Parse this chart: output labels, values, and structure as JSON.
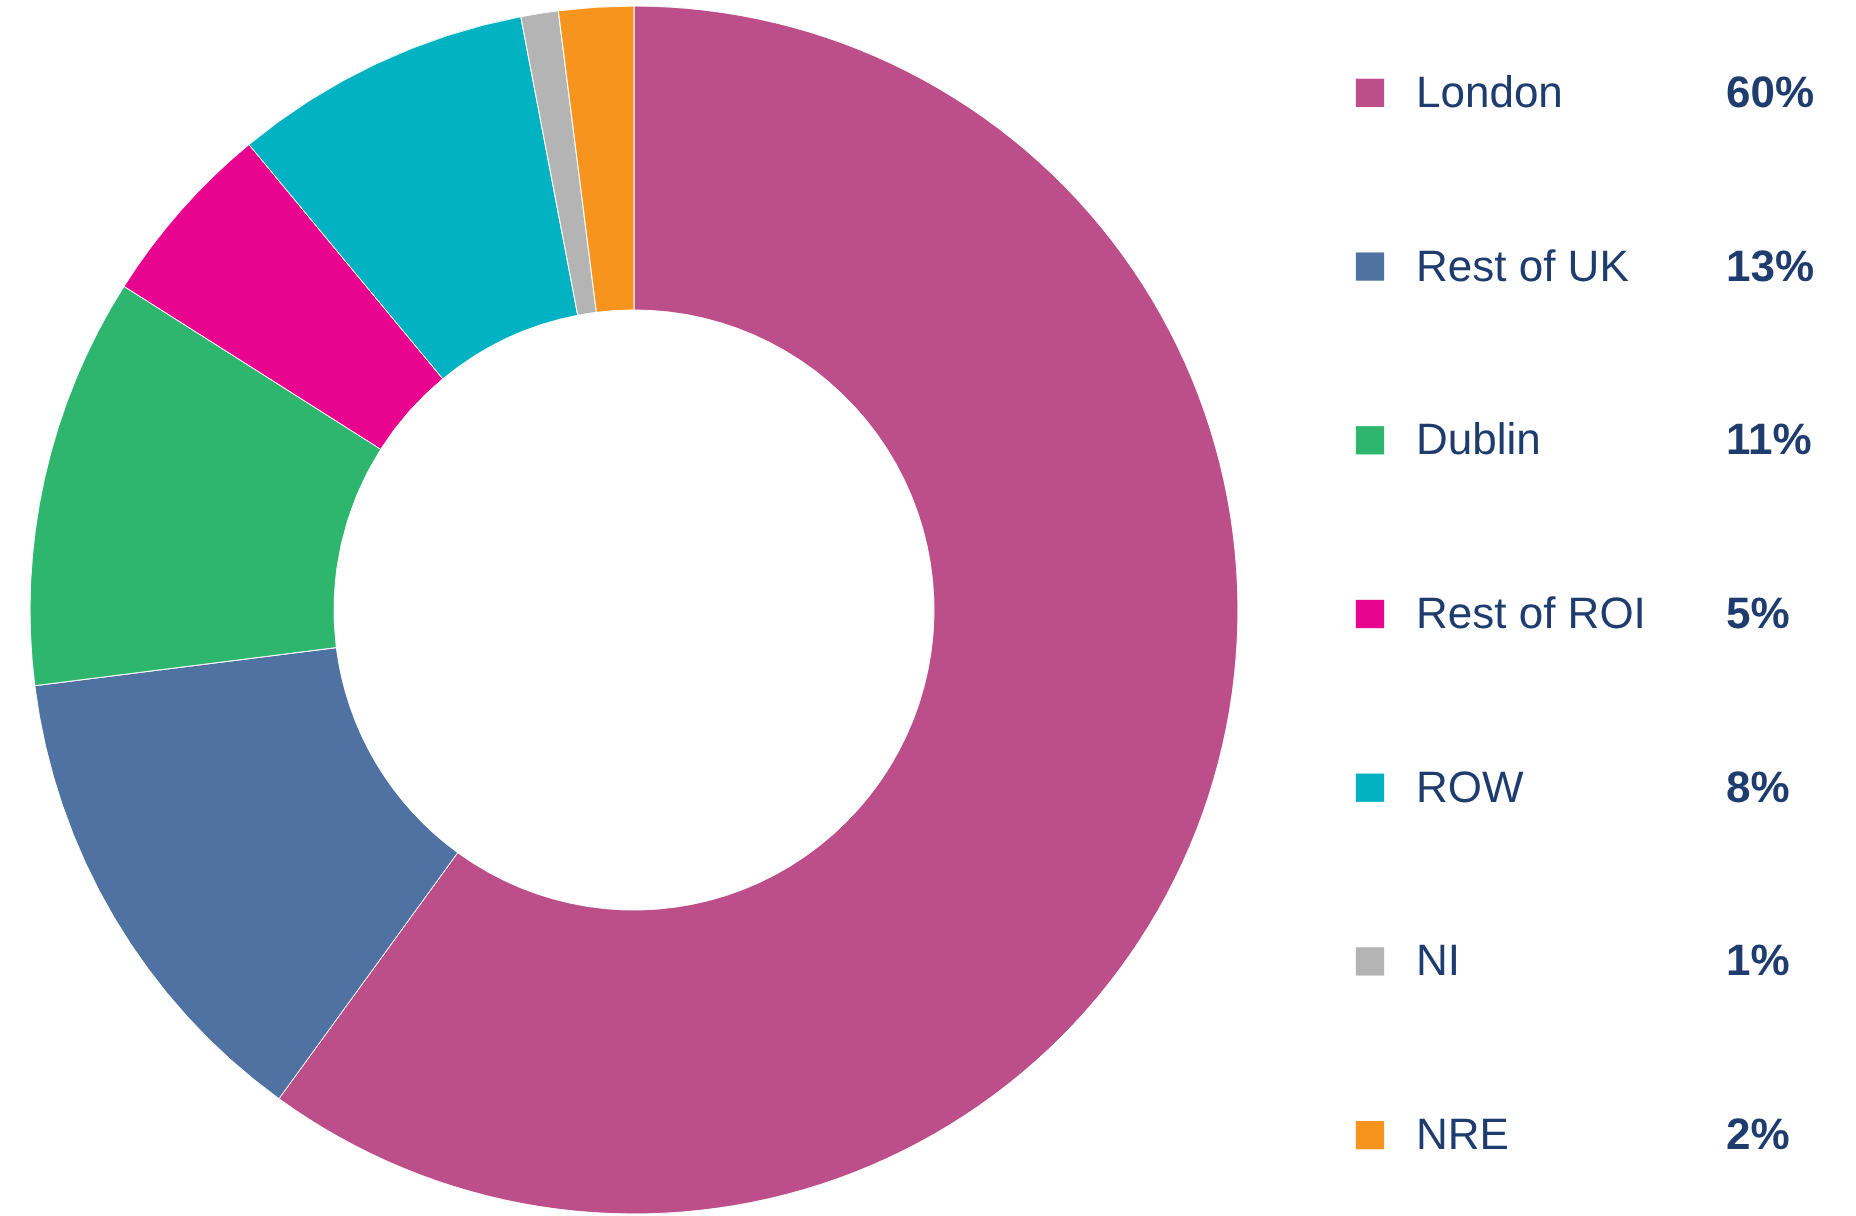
{
  "chart_data": {
    "type": "donut",
    "categories": [
      "London",
      "Rest of UK",
      "Dublin",
      "Rest of ROI",
      "ROW",
      "NI",
      "NRE"
    ],
    "values": [
      60,
      13,
      11,
      5,
      8,
      1,
      2
    ],
    "colors": [
      "#bc4f8a",
      "#4f72a3",
      "#2eb56e",
      "#e8048f",
      "#00b2c2",
      "#b4b4b4",
      "#f7941d"
    ],
    "value_labels": [
      "60%",
      "13%",
      "11%",
      "5%",
      "8%",
      "1%",
      "2%"
    ],
    "legend": "right"
  }
}
